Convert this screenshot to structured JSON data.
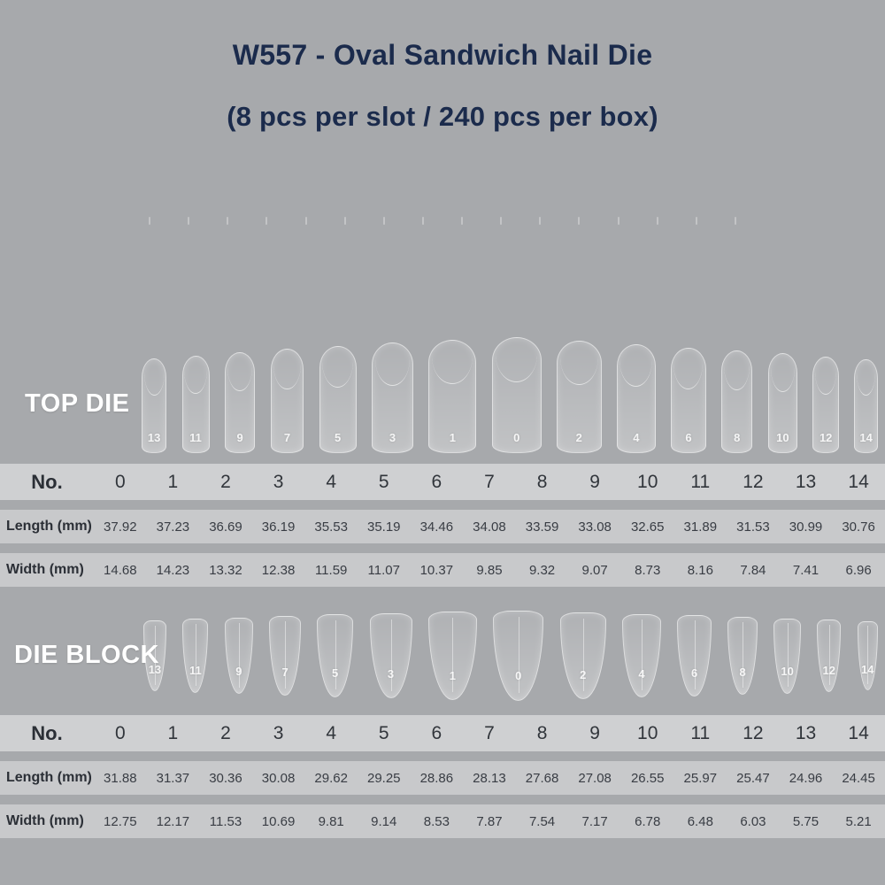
{
  "page": {
    "background": "#a7a9ac",
    "title_color": "#1b2b4c",
    "section_label_color": "#ffffff"
  },
  "header": {
    "title": "W557 - Oval Sandwich Nail Die",
    "subtitle": "(8 pcs per slot / 240 pcs per box)"
  },
  "table_labels": {
    "no": "No.",
    "length": "Length (mm)",
    "width": "Width (mm)"
  },
  "top_die": {
    "label": "TOP DIE",
    "display_order": [
      13,
      11,
      9,
      7,
      5,
      3,
      1,
      0,
      2,
      4,
      6,
      8,
      10,
      12,
      14
    ],
    "numbers": [
      0,
      1,
      2,
      3,
      4,
      5,
      6,
      7,
      8,
      9,
      10,
      11,
      12,
      13,
      14
    ],
    "length_mm": [
      37.92,
      37.23,
      36.69,
      36.19,
      35.53,
      35.19,
      34.46,
      34.08,
      33.59,
      33.08,
      32.65,
      31.89,
      31.53,
      30.99,
      30.76
    ],
    "width_mm": [
      14.68,
      14.23,
      13.32,
      12.38,
      11.59,
      11.07,
      10.37,
      9.85,
      9.32,
      9.07,
      8.73,
      8.16,
      7.84,
      7.41,
      6.96
    ]
  },
  "die_block": {
    "label": "DIE BLOCK",
    "display_order": [
      13,
      11,
      9,
      7,
      5,
      3,
      1,
      0,
      2,
      4,
      6,
      8,
      10,
      12,
      14
    ],
    "numbers": [
      0,
      1,
      2,
      3,
      4,
      5,
      6,
      7,
      8,
      9,
      10,
      11,
      12,
      13,
      14
    ],
    "length_mm": [
      31.88,
      31.37,
      30.36,
      30.08,
      29.62,
      29.25,
      28.86,
      28.13,
      27.68,
      27.08,
      26.55,
      25.97,
      25.47,
      24.96,
      24.45
    ],
    "width_mm": [
      12.75,
      12.17,
      11.53,
      10.69,
      9.81,
      9.14,
      8.53,
      7.87,
      7.54,
      7.17,
      6.78,
      6.48,
      6.03,
      5.75,
      5.21
    ]
  }
}
